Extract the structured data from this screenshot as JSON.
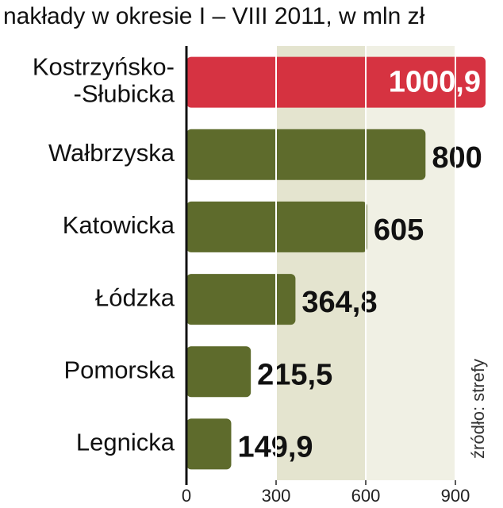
{
  "chart_data": {
    "type": "bar",
    "orientation": "horizontal",
    "title": "nakłady w okresie I – VIII 2011, w mln zł",
    "source": "źródło: strefy",
    "categories": [
      "Kostrzyńsko-\n-Słubicka",
      "Wałbrzyska",
      "Katowicka",
      "Łódzka",
      "Pomorska",
      "Legnicka"
    ],
    "values": [
      1000.9,
      800,
      605,
      364.8,
      215.5,
      149.9
    ],
    "value_labels": [
      "1000,9",
      "800",
      "605",
      "364,8",
      "215,5",
      "149,9"
    ],
    "colors": [
      "#d42838",
      "#5e6b2c",
      "#5e6b2c",
      "#5e6b2c",
      "#5e6b2c",
      "#5e6b2c"
    ],
    "xlim": [
      0,
      900
    ],
    "xticks": [
      0,
      300,
      600,
      900
    ],
    "grid": true
  }
}
